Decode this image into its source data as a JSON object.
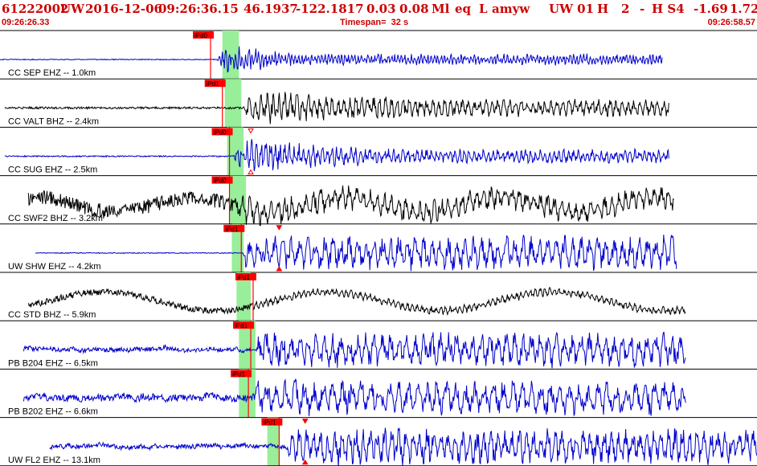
{
  "header": {
    "event_id": "61222002",
    "network": "UW",
    "date": "2016-12-06",
    "time": "09:26:36.15",
    "latitude": "46.1937",
    "longitude": "-122.1817",
    "depth": "0.03",
    "magnitude": "0.08",
    "mag_type": "Ml",
    "event_type": "eq",
    "review": "L",
    "analyst": "amyw",
    "source": "UW 01",
    "quality": "H",
    "phase_count": "2",
    "dash": "-",
    "solution": "H S4",
    "value1": "-1.69",
    "value2": "1.72",
    "start_time": "09:26:26.33",
    "timespan": "Timespan=  32 s",
    "end_time": "09:26:58.57"
  },
  "colors": {
    "header_text": "#cc0000",
    "pick_marker": "#ff0000",
    "pick_window": "#99ee99",
    "trace_blue": "#0000cc",
    "trace_black": "#000000"
  },
  "chart_data": {
    "type": "line",
    "title": "",
    "xlabel": "",
    "ylabel": "",
    "x_start": "09:26:26.33",
    "x_end": "09:26:58.57",
    "timespan_s": 32,
    "traces": [
      {
        "label": "CC SEP EHZ -- 1.0km",
        "color": "blue",
        "start_s": 0.0,
        "end_s": 28.0,
        "onset_s": 9.2,
        "pre_amp": 0.02,
        "peak_amp": 0.9,
        "decay_s": 2.5,
        "coda_amp": 0.06,
        "period_s": 0.14,
        "noise": "flat",
        "picks": [
          {
            "label": "iPd0",
            "t_s": 8.9
          }
        ],
        "window_s": [
          9.4,
          10.1
        ],
        "triangles": []
      },
      {
        "label": "CC VALT BHZ -- 2.4km",
        "color": "black",
        "start_s": 0.2,
        "end_s": 28.3,
        "onset_s": 10.3,
        "pre_amp": 0.05,
        "peak_amp": 0.8,
        "decay_s": 9.0,
        "coda_amp": 0.2,
        "period_s": 0.25,
        "noise": "flat",
        "picks": [
          {
            "label": "iPd1",
            "t_s": 9.4
          }
        ],
        "window_s": [
          9.5,
          10.2
        ],
        "triangles": []
      },
      {
        "label": "CC SUG EHZ -- 2.5km",
        "color": "blue",
        "start_s": 0.2,
        "end_s": 28.3,
        "onset_s": 9.9,
        "pre_amp": 0.03,
        "peak_amp": 0.85,
        "decay_s": 6.0,
        "coda_amp": 0.12,
        "period_s": 0.2,
        "noise": "flat",
        "picks": [
          {
            "label": "iPd0",
            "t_s": 9.7
          }
        ],
        "window_s": [
          9.6,
          10.3
        ],
        "triangles": [
          {
            "t_s": 10.6,
            "kind": "open"
          }
        ]
      },
      {
        "label": "CC SWF2 BHZ -- 3.2km",
        "color": "black",
        "start_s": 1.2,
        "end_s": 28.5,
        "onset_s": 9.9,
        "pre_amp": 0.35,
        "peak_amp": 0.7,
        "decay_s": 14.0,
        "coda_amp": 0.35,
        "period_s": 0.3,
        "noise": "long_wave",
        "picks": [
          {
            "label": "iPd0",
            "t_s": 9.7
          }
        ],
        "window_s": [
          9.7,
          10.4
        ],
        "triangles": []
      },
      {
        "label": "UW SHW EHZ -- 4.2km",
        "color": "blue",
        "start_s": 1.5,
        "end_s": 28.6,
        "onset_s": 10.3,
        "pre_amp": 0.02,
        "peak_amp": 0.8,
        "decay_s": 60.0,
        "coda_amp": 0.7,
        "period_s": 0.35,
        "noise": "flat",
        "picks": [
          {
            "label": "iPd1",
            "t_s": 10.2
          }
        ],
        "window_s": [
          9.8,
          10.3
        ],
        "triangles": [
          {
            "t_s": 11.8,
            "kind": "filled"
          }
        ]
      },
      {
        "label": "CC STD BHZ -- 5.9km",
        "color": "black",
        "start_s": 1.2,
        "end_s": 29.0,
        "onset_s": 10.6,
        "pre_amp": 0.15,
        "peak_amp": 0.2,
        "decay_s": 20.0,
        "coda_amp": 0.15,
        "period_s": 0.2,
        "noise": "very_long_wave",
        "picks": [
          {
            "label": "iPd1",
            "t_s": 10.7
          }
        ],
        "window_s": [
          10.0,
          10.6
        ],
        "triangles": []
      },
      {
        "label": "PB B204 EHZ -- 6.5km",
        "color": "blue",
        "start_s": 1.0,
        "end_s": 29.0,
        "onset_s": 10.9,
        "pre_amp": 0.1,
        "peak_amp": 0.8,
        "decay_s": 60.0,
        "coda_amp": 0.65,
        "period_s": 0.35,
        "noise": "wiggle",
        "picks": [
          {
            "label": "iPd1",
            "t_s": 10.6
          }
        ],
        "window_s": [
          10.1,
          10.8
        ],
        "triangles": []
      },
      {
        "label": "PB B202 EHZ -- 6.6km",
        "color": "blue",
        "start_s": 1.0,
        "end_s": 29.0,
        "onset_s": 10.8,
        "pre_amp": 0.15,
        "peak_amp": 0.8,
        "decay_s": 60.0,
        "coda_amp": 0.7,
        "period_s": 0.4,
        "noise": "wiggle",
        "picks": [
          {
            "label": "iPd1",
            "t_s": 10.5
          }
        ],
        "window_s": [
          10.1,
          10.8
        ],
        "triangles": []
      },
      {
        "label": "UW FL2 EHZ -- 13.1km",
        "color": "blue",
        "start_s": 2.1,
        "end_s": 32.0,
        "onset_s": 12.2,
        "pre_amp": 0.1,
        "peak_amp": 0.9,
        "decay_s": 60.0,
        "coda_amp": 0.45,
        "period_s": 0.3,
        "noise": "wiggle",
        "picks": [
          {
            "label": "iPd1",
            "t_s": 11.8
          }
        ],
        "window_s": [
          11.3,
          11.8
        ],
        "triangles": [
          {
            "t_s": 12.9,
            "kind": "filled"
          }
        ]
      }
    ]
  }
}
